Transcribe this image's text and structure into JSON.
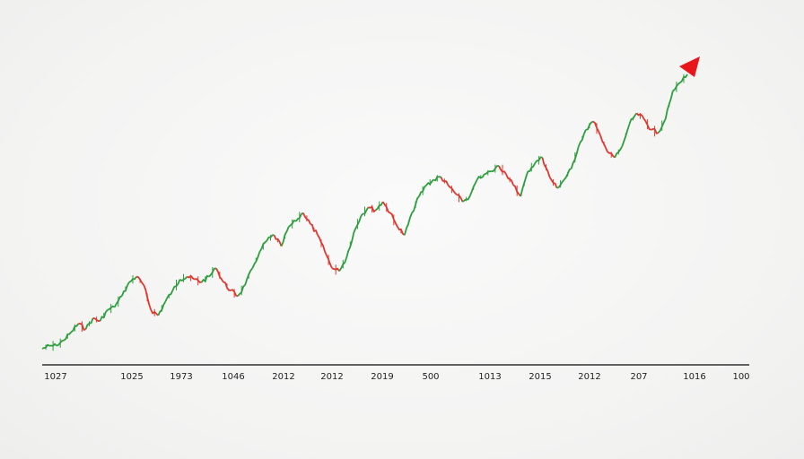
{
  "chart_data": {
    "type": "line",
    "title": "",
    "xlabel": "",
    "ylabel": "",
    "x_tick_labels": [
      "1027",
      "1025",
      "1973",
      "1046",
      "2012",
      "2012",
      "2019",
      "500",
      "1013",
      "2015",
      "2012",
      "207",
      "1016",
      "100"
    ],
    "up_color": "#2e9e3e",
    "down_color": "#e0372f",
    "arrow_color": "#e8161b",
    "axis_color": "#333333",
    "ylim": [
      0,
      100
    ],
    "trend_end_marker": "arrow-up",
    "grid": false,
    "legend": "none",
    "series": [
      {
        "values": [
          1,
          2,
          2,
          4,
          7,
          10,
          8,
          12,
          11,
          15,
          16,
          20,
          25,
          27,
          24,
          15,
          13,
          18,
          22,
          26,
          27,
          26,
          25,
          27,
          30,
          25,
          22,
          20,
          24,
          30,
          36,
          40,
          42,
          38,
          45,
          47,
          50,
          46,
          42,
          36,
          30,
          29,
          34,
          43,
          49,
          52,
          51,
          54,
          50,
          45,
          42,
          50,
          56,
          60,
          62,
          63,
          60,
          57,
          54,
          56,
          62,
          64,
          65,
          67,
          64,
          60,
          56,
          65,
          68,
          70,
          63,
          59,
          62,
          66,
          74,
          80,
          83,
          78,
          72,
          70,
          74,
          82,
          86,
          84,
          80,
          79,
          84,
          94,
          97,
          100
        ]
      }
    ]
  }
}
